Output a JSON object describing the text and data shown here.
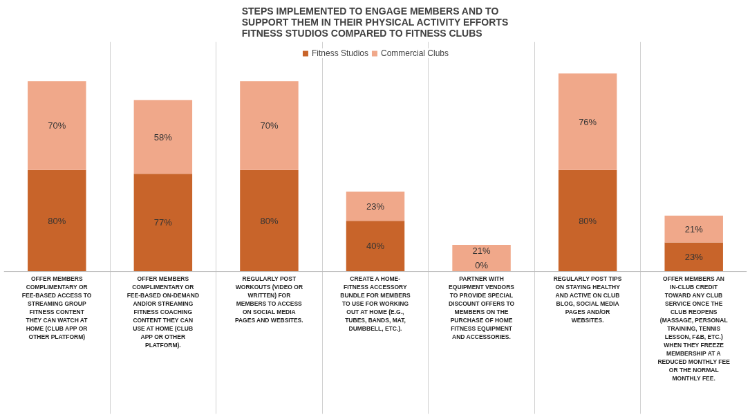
{
  "chart_data": {
    "type": "bar",
    "stacked": true,
    "data_labels": true,
    "grid": "x",
    "legend": "top",
    "title": "STEPS IMPLEMENTED TO ENGAGE MEMBERS AND TO\nSUPPORT THEM IN THEIR PHYSICAL ACTIVITY EFFORTS\nFITNESS STUDIOS COMPARED TO FITNESS CLUBS",
    "categories": [
      "OFFER MEMBERS COMPLIMENTARY OR FEE-BASED ACCESS TO STREAMING GROUP FITNESS CONTENT THEY CAN WATCH AT HOME (CLUB APP OR OTHER PLATFORM)",
      "OFFER MEMBERS COMPLIMENTARY OR FEE-BASED ON-DEMAND AND/OR STREAMING FITNESS COACHING CONTENT THEY CAN USE AT HOME (CLUB APP OR OTHER PLATFORM).",
      "REGULARLY POST WORKOUTS (VIDEO OR WRITTEN) FOR MEMBERS TO ACCESS ON SOCIAL MEDIA PAGES AND WEBSITES.",
      "CREATE A HOME-FITNESS ACCESSORY BUNDLE FOR MEMBERS TO USE FOR WORKING OUT AT HOME (E.G., TUBES, BANDS, MAT, DUMBBELL, ETC.).",
      "PARTNER WITH EQUIPMENT VENDORS TO PROVIDE SPECIAL DISCOUNT OFFERS TO MEMBERS ON THE PURCHASE OF HOME FITNESS EQUIPMENT AND ACCESSORIES.",
      "REGULARLY POST TIPS ON STAYING HEALTHY AND ACTIVE ON CLUB BLOG, SOCIAL MEDIA PAGES AND/OR WEBSITES.",
      "OFFER MEMBERS AN IN-CLUB CREDIT TOWARD ANY CLUB SERVICE ONCE THE CLUB REOPENS (MASSAGE, PERSONAL TRAINING, TENNIS LESSON, F&B, ETC.) WHEN THEY FREEZE MEMBERSHIP AT A REDUCED MONTHLY FEE OR THE NORMAL MONTHLY FEE."
    ],
    "series": [
      {
        "name": "Fitness Studios",
        "color": "#c8642a",
        "values": [
          80,
          77,
          80,
          40,
          0,
          80,
          23
        ],
        "value_labels": [
          "80%",
          "77%",
          "80%",
          "40%",
          "0%",
          "80%",
          "23%"
        ]
      },
      {
        "name": "Commercial Clubs",
        "color": "#f0a88a",
        "values": [
          70,
          58,
          70,
          23,
          21,
          76,
          21
        ],
        "value_labels": [
          "70%",
          "58%",
          "70%",
          "23%",
          "21%",
          "76%",
          "21%"
        ]
      }
    ]
  }
}
